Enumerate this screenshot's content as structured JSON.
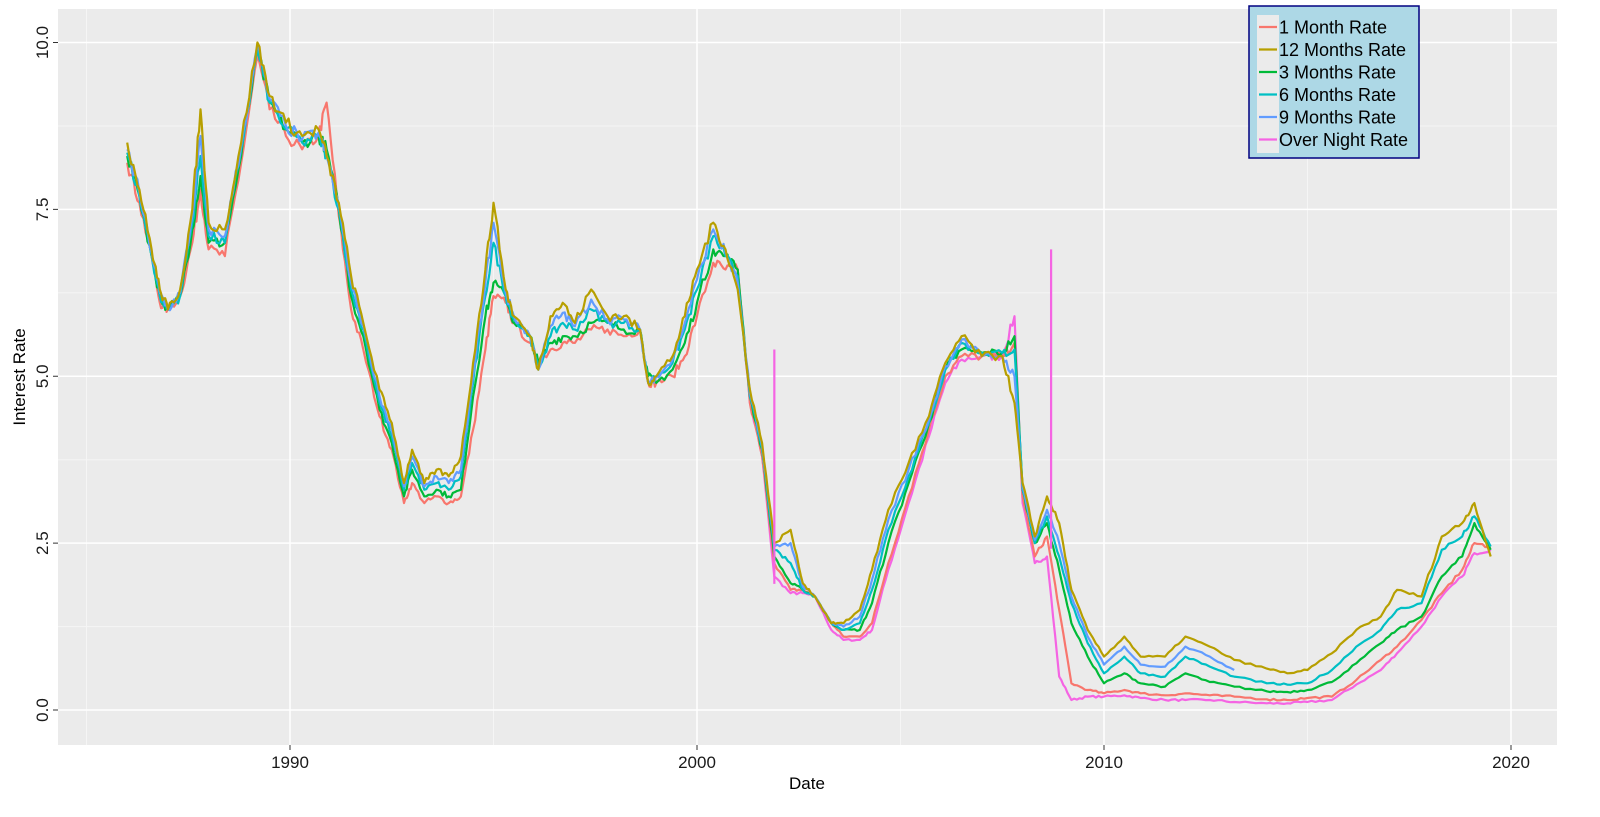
{
  "chart_data": {
    "type": "line",
    "title": "",
    "xlabel": "Date",
    "ylabel": "Interest Rate",
    "xlim": [
      1984.3,
      2021.1
    ],
    "ylim": [
      -0.53,
      10.5
    ],
    "x_ticks": [
      1990,
      2000,
      2010,
      2020
    ],
    "x_tick_labels": [
      "1990",
      "2000",
      "2010",
      "2020"
    ],
    "y_ticks": [
      0.0,
      2.5,
      5.0,
      7.5,
      10.0
    ],
    "y_tick_labels": [
      "0.0",
      "2.5",
      "5.0",
      "7.5",
      "10.0"
    ],
    "grid": true,
    "background": "#EBEBEB",
    "legend_position": "top-right (inside)",
    "legend_background": "#ADD8E6",
    "legend_border": "#000080",
    "x": [
      1986.0,
      1986.3,
      1986.6,
      1986.8,
      1987.0,
      1987.3,
      1987.6,
      1987.8,
      1988.0,
      1988.4,
      1988.8,
      1989.2,
      1989.5,
      1989.9,
      1990.3,
      1990.7,
      1990.9,
      1991.2,
      1991.5,
      1991.8,
      1992.2,
      1992.5,
      1992.8,
      1993.0,
      1993.3,
      1993.6,
      1993.9,
      1994.2,
      1994.5,
      1994.8,
      1995.0,
      1995.3,
      1995.5,
      1995.9,
      1996.1,
      1996.4,
      1996.7,
      1997.0,
      1997.4,
      1997.8,
      1998.2,
      1998.6,
      1998.8,
      1999.0,
      1999.4,
      1999.7,
      2000.0,
      2000.4,
      2000.7,
      2001.0,
      2001.3,
      2001.6,
      2001.9,
      2002.3,
      2002.6,
      2002.9,
      2003.3,
      2003.6,
      2004.0,
      2004.3,
      2004.7,
      2005.2,
      2005.7,
      2006.1,
      2006.5,
      2007.0,
      2007.5,
      2007.8,
      2008.0,
      2008.3,
      2008.6,
      2008.9,
      2009.2,
      2009.6,
      2010.0,
      2010.5,
      2010.9,
      2011.5,
      2012.0,
      2012.6,
      2013.2,
      2014.0,
      2014.5,
      2015.0,
      2015.6,
      2016.2,
      2016.8,
      2017.2,
      2017.8,
      2018.3,
      2018.8,
      2019.1,
      2019.5
    ],
    "series": [
      {
        "name": "1 Month Rate",
        "color": "#F8766D",
        "values": [
          8.2,
          7.6,
          6.8,
          6.1,
          6.0,
          6.2,
          7.0,
          7.8,
          6.9,
          6.8,
          8.2,
          9.8,
          9.0,
          8.6,
          8.4,
          8.6,
          9.1,
          7.4,
          6.0,
          5.4,
          4.4,
          3.9,
          3.1,
          3.4,
          3.1,
          3.2,
          3.1,
          3.2,
          4.2,
          5.4,
          6.2,
          6.1,
          5.8,
          5.5,
          5.2,
          5.4,
          5.5,
          5.5,
          5.7,
          5.7,
          5.6,
          5.7,
          4.9,
          4.9,
          5.0,
          5.3,
          5.9,
          6.7,
          6.6,
          6.6,
          4.6,
          3.8,
          2.2,
          1.8,
          1.8,
          1.7,
          1.3,
          1.1,
          1.1,
          1.3,
          2.2,
          3.2,
          4.2,
          5.0,
          5.3,
          5.3,
          5.3,
          5.5,
          3.2,
          2.3,
          2.6,
          1.5,
          0.4,
          0.3,
          0.25,
          0.3,
          0.25,
          0.22,
          0.25,
          0.22,
          0.2,
          0.16,
          0.15,
          0.18,
          0.2,
          0.45,
          0.75,
          0.95,
          1.35,
          1.75,
          2.1,
          2.5,
          2.45
        ]
      },
      {
        "name": "12 Months Rate",
        "color": "#B79F00",
        "values": [
          8.5,
          7.8,
          6.9,
          6.3,
          6.0,
          6.3,
          7.5,
          9.0,
          7.3,
          7.2,
          8.5,
          10.0,
          9.2,
          8.8,
          8.6,
          8.7,
          8.3,
          7.6,
          6.5,
          5.8,
          4.8,
          4.3,
          3.4,
          3.9,
          3.4,
          3.6,
          3.5,
          3.8,
          5.2,
          6.6,
          7.6,
          6.3,
          5.9,
          5.6,
          5.1,
          5.9,
          6.1,
          5.8,
          6.3,
          5.9,
          5.9,
          5.7,
          4.9,
          5.0,
          5.3,
          5.9,
          6.6,
          7.3,
          6.9,
          6.3,
          4.8,
          4.0,
          2.5,
          2.7,
          1.9,
          1.7,
          1.3,
          1.3,
          1.5,
          2.1,
          3.0,
          3.7,
          4.4,
          5.2,
          5.6,
          5.3,
          5.3,
          4.6,
          3.4,
          2.6,
          3.2,
          2.8,
          1.8,
          1.2,
          0.8,
          1.1,
          0.8,
          0.8,
          1.1,
          0.95,
          0.75,
          0.62,
          0.55,
          0.6,
          0.85,
          1.2,
          1.4,
          1.8,
          1.7,
          2.6,
          2.8,
          3.1,
          2.3
        ]
      },
      {
        "name": "3 Months Rate",
        "color": "#00BA38",
        "values": [
          8.3,
          7.7,
          6.8,
          6.2,
          6.0,
          6.2,
          7.2,
          8.0,
          7.0,
          7.0,
          8.3,
          9.9,
          9.1,
          8.7,
          8.5,
          8.6,
          8.4,
          7.5,
          6.2,
          5.6,
          4.5,
          4.0,
          3.2,
          3.6,
          3.2,
          3.3,
          3.2,
          3.3,
          4.7,
          5.9,
          6.4,
          6.2,
          5.8,
          5.6,
          5.2,
          5.5,
          5.6,
          5.6,
          5.8,
          5.8,
          5.7,
          5.7,
          5.0,
          4.9,
          5.1,
          5.5,
          6.1,
          6.9,
          6.8,
          6.6,
          4.7,
          3.9,
          2.3,
          1.9,
          1.8,
          1.7,
          1.3,
          1.2,
          1.2,
          1.6,
          2.5,
          3.4,
          4.3,
          5.1,
          5.4,
          5.35,
          5.35,
          5.6,
          3.3,
          2.5,
          2.8,
          2.1,
          1.3,
          0.8,
          0.4,
          0.55,
          0.4,
          0.35,
          0.55,
          0.42,
          0.35,
          0.28,
          0.27,
          0.3,
          0.42,
          0.7,
          1.0,
          1.2,
          1.4,
          2.0,
          2.3,
          2.8,
          2.4
        ]
      },
      {
        "name": "6 Months Rate",
        "color": "#00BFC4",
        "values": [
          8.35,
          7.7,
          6.8,
          6.2,
          6.0,
          6.2,
          7.3,
          8.3,
          7.1,
          7.0,
          8.4,
          9.9,
          9.1,
          8.7,
          8.5,
          8.6,
          8.3,
          7.5,
          6.3,
          5.7,
          4.6,
          4.1,
          3.3,
          3.7,
          3.3,
          3.4,
          3.3,
          3.5,
          4.9,
          6.2,
          7.0,
          6.2,
          5.85,
          5.6,
          5.1,
          5.6,
          5.8,
          5.7,
          6.0,
          5.8,
          5.8,
          5.7,
          4.9,
          5.0,
          5.2,
          5.7,
          6.3,
          7.1,
          6.8,
          6.5,
          4.7,
          3.9,
          2.4,
          2.2,
          1.8,
          1.7,
          1.3,
          1.2,
          1.3,
          1.8,
          2.7,
          3.5,
          4.3,
          5.1,
          5.5,
          5.35,
          5.35,
          5.4,
          3.3,
          2.5,
          2.9,
          2.3,
          1.6,
          1.0,
          0.55,
          0.8,
          0.55,
          0.5,
          0.8,
          0.65,
          0.5,
          0.4,
          0.38,
          0.4,
          0.6,
          0.95,
          1.2,
          1.5,
          1.6,
          2.4,
          2.6,
          2.9,
          2.45
        ]
      },
      {
        "name": "9 Months Rate",
        "color": "#619CFF",
        "values": [
          8.4,
          7.75,
          6.85,
          6.25,
          6.0,
          6.25,
          7.4,
          8.6,
          7.2,
          7.1,
          8.45,
          9.95,
          9.15,
          8.75,
          8.55,
          8.65,
          8.3,
          7.55,
          6.4,
          5.75,
          4.7,
          4.2,
          3.35,
          3.8,
          3.35,
          3.5,
          3.4,
          3.6,
          5.0,
          6.4,
          7.3,
          6.25,
          5.9,
          5.6,
          5.1,
          5.75,
          5.95,
          5.75,
          6.15,
          5.85,
          5.85,
          5.7,
          4.9,
          5.0,
          5.25,
          5.8,
          6.45,
          7.2,
          6.85,
          6.4,
          4.75,
          3.95,
          2.45,
          2.5,
          1.85,
          1.7,
          1.3,
          1.25,
          1.4,
          1.95,
          2.85,
          3.6,
          4.35,
          5.15,
          5.55,
          5.3,
          5.3,
          5.0,
          3.35,
          2.55,
          3.0,
          2.5,
          1.7,
          1.1,
          0.68,
          0.95,
          0.68,
          0.65,
          0.95,
          0.8,
          0.6,
          null,
          null,
          null,
          null,
          null,
          null,
          null,
          null,
          null,
          null,
          null,
          null
        ]
      },
      {
        "name": "Over Night Rate",
        "color": "#F564E3",
        "values": [
          null,
          null,
          null,
          null,
          null,
          null,
          null,
          null,
          null,
          null,
          null,
          null,
          null,
          null,
          null,
          null,
          null,
          null,
          null,
          null,
          null,
          null,
          null,
          null,
          null,
          null,
          null,
          null,
          null,
          null,
          null,
          null,
          null,
          null,
          null,
          null,
          null,
          null,
          null,
          null,
          null,
          null,
          null,
          null,
          null,
          null,
          null,
          null,
          null,
          6.6,
          4.6,
          3.8,
          2.0,
          1.75,
          1.75,
          1.7,
          1.2,
          1.05,
          1.05,
          1.2,
          2.1,
          3.1,
          4.1,
          4.9,
          5.25,
          5.3,
          5.3,
          5.9,
          3.1,
          2.2,
          2.3,
          0.5,
          0.15,
          0.2,
          0.2,
          0.22,
          0.18,
          0.15,
          0.15,
          0.15,
          0.12,
          0.1,
          0.1,
          0.12,
          0.15,
          0.38,
          0.6,
          0.85,
          1.25,
          1.7,
          2.0,
          2.35,
          2.4
        ]
      }
    ],
    "annotations": [
      {
        "series": "Over Night Rate",
        "x": 2001.9,
        "value": 5.4,
        "note": "spike"
      },
      {
        "series": "Over Night Rate",
        "x": 2008.7,
        "value": 6.9,
        "note": "spike"
      }
    ]
  },
  "legend": {
    "items": [
      {
        "label": "1 Month Rate",
        "color": "#F8766D"
      },
      {
        "label": "12 Months Rate",
        "color": "#B79F00"
      },
      {
        "label": "3 Months Rate",
        "color": "#00BA38"
      },
      {
        "label": "6 Months Rate",
        "color": "#00BFC4"
      },
      {
        "label": "9 Months Rate",
        "color": "#619CFF"
      },
      {
        "label": "Over Night Rate",
        "color": "#F564E3"
      }
    ]
  },
  "axes": {
    "x_title": "Date",
    "y_title": "Interest Rate",
    "x_labels": [
      "1990",
      "2000",
      "2010",
      "2020"
    ],
    "y_labels": [
      "0.0",
      "2.5",
      "5.0",
      "7.5",
      "10.0"
    ]
  }
}
